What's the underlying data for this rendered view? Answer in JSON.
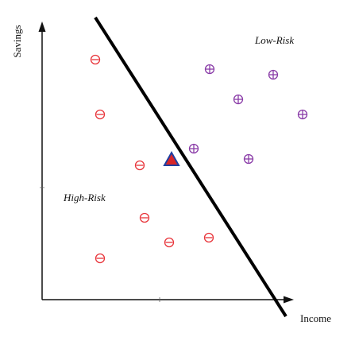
{
  "axes": {
    "x_label": "Income",
    "y_label": "Savings"
  },
  "regions": {
    "low_risk_label": "Low-Risk",
    "high_risk_label": "High-Risk"
  },
  "legend_symbols": {
    "high_risk": "minus-circle",
    "low_risk": "plus-circle",
    "query": "triangle"
  },
  "colors": {
    "high_risk": "#e8343a",
    "low_risk": "#8a3ca8",
    "query_fill": "#d7262a",
    "query_edge": "#1f3fa0",
    "boundary": "#000000"
  }
}
